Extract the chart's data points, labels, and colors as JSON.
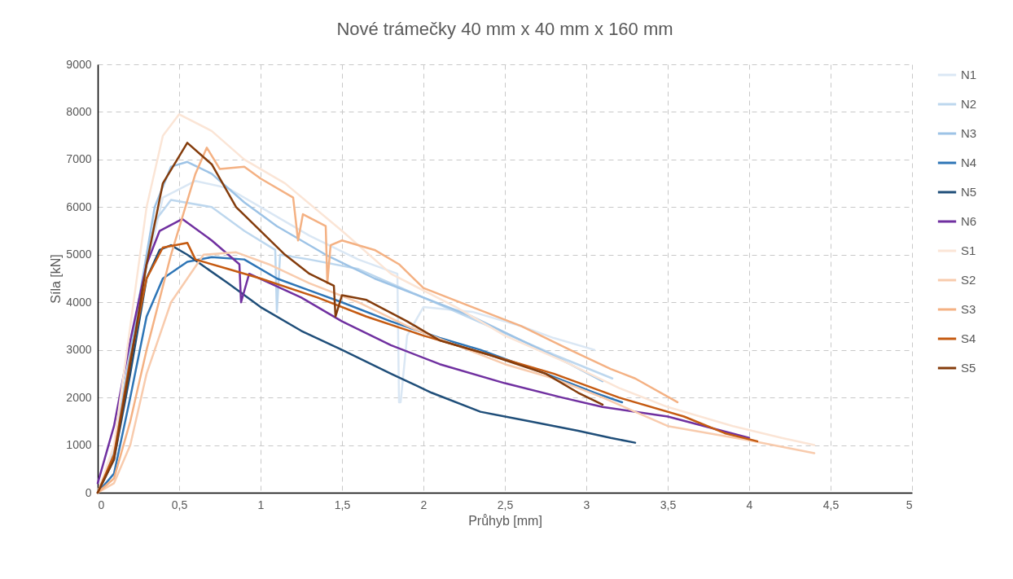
{
  "chart_data": {
    "type": "line",
    "title": "Nové trámečky 40 mm x 40 mm x 160 mm",
    "xlabel": "Průhyb [mm]",
    "ylabel": "Síla [kN]",
    "xlim": [
      0,
      5
    ],
    "ylim": [
      0,
      9000
    ],
    "xticks": [
      0,
      {
        "value": 0.5,
        "label": "0,5"
      },
      1,
      {
        "value": 1.5,
        "label": "1,5"
      },
      2,
      {
        "value": 2.5,
        "label": "2,5"
      },
      3,
      {
        "value": 3.5,
        "label": "3,5"
      },
      4,
      {
        "value": 4.5,
        "label": "4,5"
      },
      5
    ],
    "yticks": [
      0,
      1000,
      2000,
      3000,
      4000,
      5000,
      6000,
      7000,
      8000,
      9000
    ],
    "grid": true,
    "legend": "right",
    "line_style": "solid",
    "series": [
      {
        "name": "N1",
        "color": "#dae7f4",
        "x": [
          0,
          0.1,
          0.25,
          0.4,
          0.6,
          0.8,
          1.0,
          1.3,
          1.6,
          1.84,
          1.85,
          1.86,
          1.9,
          2.0,
          2.3,
          2.6,
          2.8,
          3.05
        ],
        "values": [
          0,
          900,
          4000,
          6200,
          6550,
          6400,
          6000,
          5400,
          4900,
          4600,
          1900,
          1900,
          3300,
          3900,
          3800,
          3500,
          3250,
          3000
        ]
      },
      {
        "name": "N2",
        "color": "#bdd7ee",
        "x": [
          0,
          0.1,
          0.25,
          0.35,
          0.45,
          0.7,
          0.9,
          1.09,
          1.1,
          1.12,
          1.3,
          1.6,
          2.0,
          2.4,
          2.8,
          3.16
        ],
        "values": [
          0,
          900,
          4000,
          5700,
          6150,
          6000,
          5500,
          5100,
          3800,
          5000,
          4900,
          4700,
          4100,
          3500,
          2900,
          2400
        ]
      },
      {
        "name": "N3",
        "color": "#9dc3e6",
        "x": [
          0,
          0.1,
          0.25,
          0.35,
          0.45,
          0.55,
          0.7,
          0.9,
          1.1,
          1.4,
          1.7,
          2.0,
          2.3,
          2.6,
          2.9,
          3.1
        ],
        "values": [
          0,
          800,
          4000,
          6000,
          6850,
          6950,
          6700,
          6100,
          5600,
          5000,
          4500,
          4100,
          3700,
          3200,
          2700,
          2340
        ]
      },
      {
        "name": "N4",
        "color": "#2e75b6",
        "x": [
          0,
          0.1,
          0.2,
          0.3,
          0.4,
          0.55,
          0.7,
          0.9,
          1.1,
          1.3,
          1.5,
          1.8,
          2.1,
          2.35,
          2.75,
          3.05,
          3.22
        ],
        "values": [
          0,
          400,
          2000,
          3700,
          4500,
          4850,
          4950,
          4900,
          4500,
          4250,
          4000,
          3600,
          3250,
          3000,
          2500,
          2100,
          1900
        ]
      },
      {
        "name": "N5",
        "color": "#1f4e79",
        "x": [
          0,
          0.1,
          0.2,
          0.3,
          0.38,
          0.45,
          0.55,
          0.8,
          1.0,
          1.25,
          1.5,
          1.8,
          2.05,
          2.35,
          2.65,
          2.95,
          3.15,
          3.3
        ],
        "values": [
          0,
          700,
          2500,
          4500,
          5100,
          5200,
          5000,
          4400,
          3900,
          3400,
          3000,
          2500,
          2100,
          1700,
          1500,
          1300,
          1150,
          1050
        ]
      },
      {
        "name": "N6",
        "color": "#7030a0",
        "x": [
          0,
          0.1,
          0.2,
          0.3,
          0.38,
          0.52,
          0.7,
          0.87,
          0.88,
          0.93,
          1.25,
          1.5,
          1.8,
          2.1,
          2.5,
          2.85,
          3.1,
          3.5,
          4.0
        ],
        "values": [
          200,
          1400,
          3200,
          4800,
          5500,
          5750,
          5300,
          4800,
          4000,
          4600,
          4100,
          3600,
          3100,
          2700,
          2300,
          2000,
          1800,
          1600,
          1150
        ]
      },
      {
        "name": "S1",
        "color": "#fbe5d6",
        "x": [
          0,
          0.1,
          0.2,
          0.3,
          0.4,
          0.5,
          0.7,
          0.9,
          1.15,
          1.5,
          1.8,
          2.2,
          2.5,
          2.9,
          3.2,
          3.5,
          3.9,
          4.2,
          4.4
        ],
        "values": [
          0,
          1000,
          3500,
          6000,
          7500,
          7950,
          7600,
          7000,
          6500,
          5500,
          4600,
          3900,
          3300,
          2700,
          2200,
          1800,
          1400,
          1150,
          1000
        ]
      },
      {
        "name": "S2",
        "color": "#f8cbad",
        "x": [
          0,
          0.1,
          0.2,
          0.3,
          0.45,
          0.65,
          0.85,
          1.05,
          1.3,
          1.6,
          1.9,
          2.2,
          2.5,
          2.8,
          3.1,
          3.5,
          4.0,
          4.4
        ],
        "values": [
          0,
          200,
          1000,
          2500,
          4000,
          5000,
          5050,
          4800,
          4400,
          4000,
          3500,
          3100,
          2700,
          2400,
          2000,
          1400,
          1100,
          830
        ]
      },
      {
        "name": "S3",
        "color": "#f4b183",
        "x": [
          0,
          0.1,
          0.2,
          0.3,
          0.45,
          0.6,
          0.67,
          0.75,
          0.9,
          1.0,
          1.2,
          1.23,
          1.26,
          1.4,
          1.41,
          1.43,
          1.5,
          1.7,
          1.85,
          2.0,
          2.3,
          2.6,
          2.9,
          3.15,
          3.3,
          3.56
        ],
        "values": [
          0,
          300,
          1500,
          3000,
          5000,
          6700,
          7250,
          6800,
          6850,
          6600,
          6200,
          5300,
          5850,
          5600,
          4400,
          5200,
          5300,
          5100,
          4800,
          4300,
          3900,
          3500,
          3000,
          2600,
          2400,
          1900
        ]
      },
      {
        "name": "S4",
        "color": "#c55a11",
        "x": [
          0,
          0.1,
          0.2,
          0.3,
          0.4,
          0.55,
          0.6,
          0.8,
          1.0,
          1.35,
          1.65,
          2.0,
          2.4,
          2.8,
          3.2,
          3.6,
          3.85,
          4.05
        ],
        "values": [
          0,
          800,
          2800,
          4500,
          5150,
          5250,
          4900,
          4700,
          4500,
          4100,
          3700,
          3300,
          2900,
          2500,
          2000,
          1600,
          1250,
          1080
        ]
      },
      {
        "name": "S5",
        "color": "#843c0c",
        "x": [
          0,
          0.1,
          0.2,
          0.3,
          0.4,
          0.55,
          0.7,
          0.85,
          1.0,
          1.15,
          1.3,
          1.45,
          1.46,
          1.5,
          1.65,
          1.9,
          2.1,
          2.4,
          2.75,
          2.95,
          3.1
        ],
        "values": [
          0,
          700,
          2700,
          4800,
          6500,
          7350,
          6900,
          6000,
          5500,
          5000,
          4600,
          4350,
          3700,
          4150,
          4050,
          3600,
          3200,
          2900,
          2500,
          2100,
          1850
        ]
      }
    ]
  }
}
